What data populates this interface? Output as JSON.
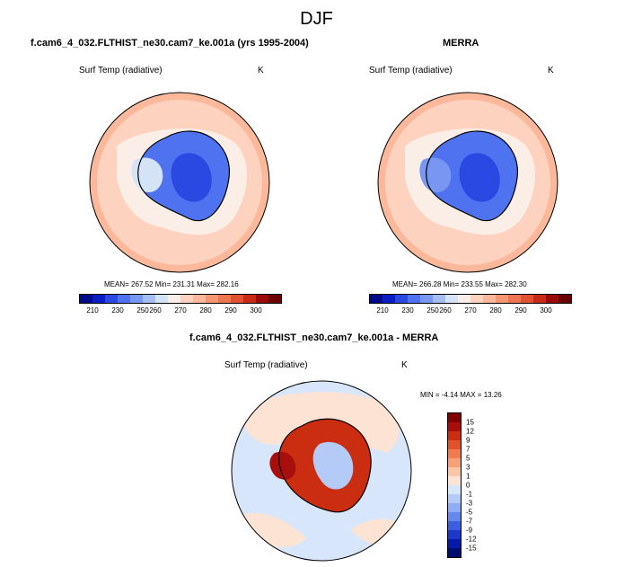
{
  "figure_title": "DJF",
  "panels": {
    "top_left": {
      "title": "f.cam6_4_032.FLTHIST_ne30.cam7_ke.001a (yrs 1995-2004)",
      "variable": "Surf Temp (radiative)",
      "units": "K",
      "stats": "MEAN= 267.52   Min= 231.31   Max= 282.16"
    },
    "top_right": {
      "title": "MERRA",
      "variable": "Surf Temp (radiative)",
      "units": "K",
      "stats": "MEAN= 266.28   Min= 233.55   Max= 282.30"
    },
    "bottom": {
      "title": "f.cam6_4_032.FLTHIST_ne30.cam7_ke.001a - MERRA",
      "variable": "Surf Temp (radiative)",
      "units": "K",
      "minmax": "MIN =  -4.14  MAX =  13.26"
    }
  },
  "abs_colorbar": {
    "colors": [
      "#000b8c",
      "#0b1ec4",
      "#2a49e3",
      "#4f73f0",
      "#7797f2",
      "#a4bdf2",
      "#d5e3f7",
      "#fbeee6",
      "#fdd3bf",
      "#fbb89b",
      "#f69672",
      "#ee754f",
      "#e0512f",
      "#c82a15",
      "#9a0a08",
      "#6b0000"
    ],
    "labels": [
      "210",
      "230",
      "250",
      "260",
      "270",
      "280",
      "290",
      "300"
    ]
  },
  "diff_colorbar": {
    "colors": [
      "#7e0000",
      "#a80e0b",
      "#cb2d10",
      "#e2522b",
      "#f07b4f",
      "#f6a07a",
      "#fbc6a8",
      "#fde3d3",
      "#d8e6fb",
      "#b5cbf7",
      "#8dadf4",
      "#6488ec",
      "#3a5fe0",
      "#1c37cc",
      "#061aa8",
      "#000b6e"
    ],
    "labels": [
      "15",
      "12",
      "9",
      "7",
      "5",
      "3",
      "1",
      "0",
      "-1",
      "-3",
      "-5",
      "-7",
      "-9",
      "-12",
      "-15"
    ]
  }
}
